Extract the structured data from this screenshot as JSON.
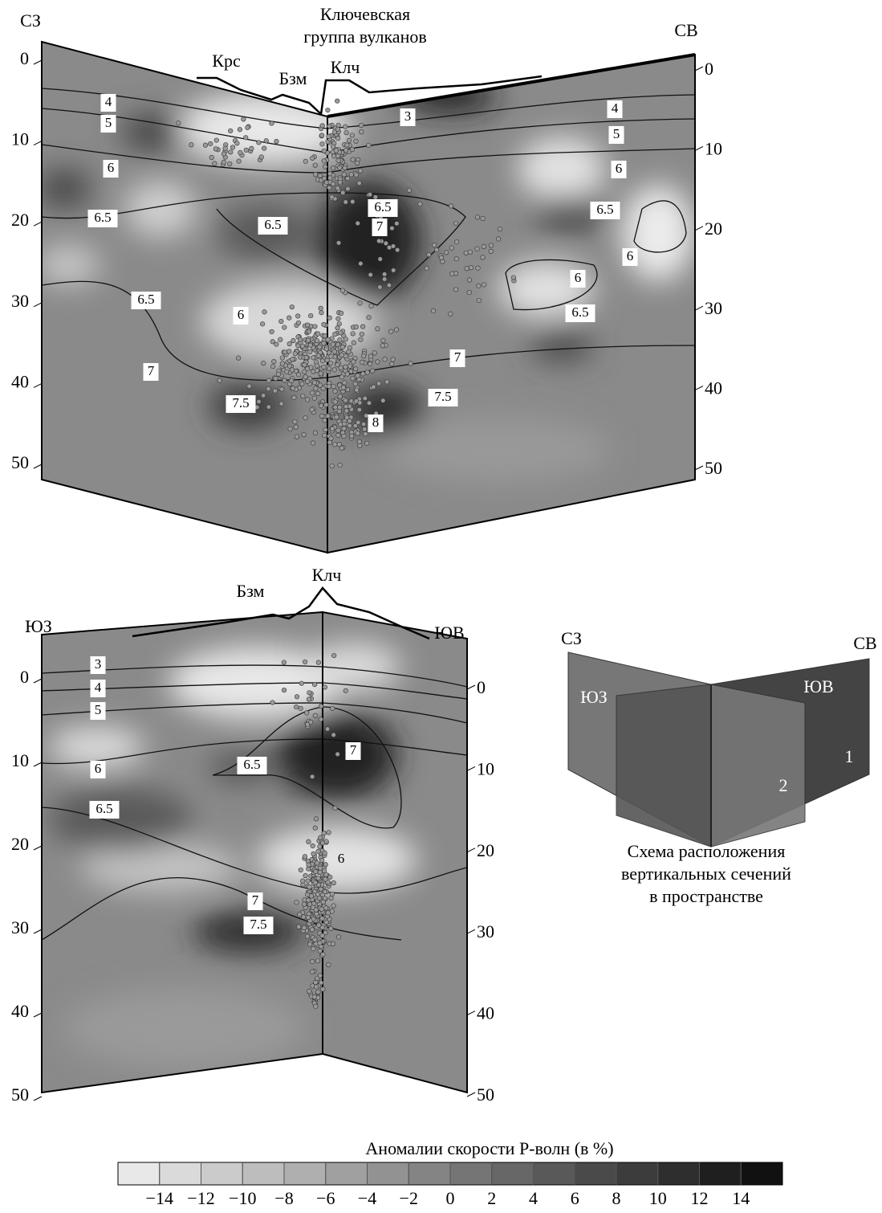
{
  "top_panel": {
    "title_lines": [
      "Ключевская",
      "группа вулканов"
    ],
    "left_direction": "СЗ",
    "right_direction": "СВ",
    "volcanoes": [
      "Крс",
      "Бзм",
      "Клч"
    ],
    "left_depths": [
      0,
      10,
      20,
      30,
      40,
      50
    ],
    "right_depths": [
      0,
      10,
      20,
      30,
      40,
      50
    ],
    "contour_labels": [
      "4",
      "5",
      "6",
      "6.5",
      "6.5",
      "6.5",
      "6",
      "7",
      "7.5",
      "8",
      "3",
      "6.5",
      "7",
      "4",
      "5",
      "6",
      "6.5",
      "6",
      "6",
      "6.5",
      "7",
      "7.5"
    ]
  },
  "bottom_panel": {
    "left_direction": "ЮЗ",
    "right_direction": "ЮВ",
    "volcanoes": [
      "Бзм",
      "Клч"
    ],
    "left_depths": [
      0,
      10,
      20,
      30,
      40,
      50
    ],
    "right_depths": [
      0,
      10,
      20,
      30,
      40,
      50
    ],
    "contour_labels": [
      "3",
      "4",
      "5",
      "6",
      "6.5",
      "6.5",
      "7",
      "6",
      "7",
      "7.5"
    ]
  },
  "schema": {
    "top_left": "СЗ",
    "top_right": "СВ",
    "inner_left": "ЮЗ",
    "inner_right": "ЮВ",
    "plane_1": "1",
    "plane_2": "2",
    "caption": [
      "Схема расположения",
      "вертикальных сечений",
      "в пространстве"
    ]
  },
  "colorbar": {
    "title": "Аномалии скорости Р-волн (в %)",
    "ticks": [
      -14,
      -12,
      -10,
      -8,
      -6,
      -4,
      -2,
      0,
      2,
      4,
      6,
      8,
      10,
      12,
      14
    ]
  }
}
